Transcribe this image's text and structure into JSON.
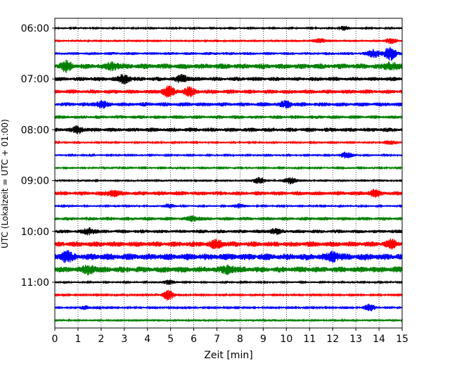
{
  "chart_data": {
    "type": "line",
    "title": "",
    "xlabel": "Zeit  [min]",
    "ylabel": "UTC (Lokalzeit = UTC + 01:00)",
    "xlim": [
      0,
      15
    ],
    "xticks": [
      "0",
      "1",
      "2",
      "3",
      "4",
      "5",
      "6",
      "7",
      "8",
      "9",
      "10",
      "11",
      "12",
      "13",
      "14",
      "15"
    ],
    "yticks": [
      "06:00",
      "07:00",
      "08:00",
      "09:00",
      "10:00",
      "11:00"
    ],
    "grid": "vertical dotted",
    "line_interval_min": 15,
    "start_time": "06:00",
    "line_colors": [
      "#000000",
      "#ff0000",
      "#0000ff",
      "#008000"
    ],
    "traces": [
      {
        "time": "06:00",
        "color": "#000000",
        "amp": 0.15,
        "bursts": [
          {
            "min": 12.5,
            "amp": 0.3
          }
        ]
      },
      {
        "time": "06:15",
        "color": "#ff0000",
        "amp": 0.2,
        "bursts": [
          {
            "min": 11.5,
            "amp": 0.3
          },
          {
            "min": 14.5,
            "amp": 0.3
          }
        ]
      },
      {
        "time": "06:30",
        "color": "#0000ff",
        "amp": 0.25,
        "bursts": [
          {
            "min": 13.8,
            "amp": 0.6
          },
          {
            "min": 14.5,
            "amp": 1.0
          }
        ]
      },
      {
        "time": "06:45",
        "color": "#008000",
        "amp": 0.45,
        "bursts": [
          {
            "min": 0.5,
            "amp": 0.6
          },
          {
            "min": 2.5,
            "amp": 0.5
          },
          {
            "min": 14.5,
            "amp": 0.5
          }
        ]
      },
      {
        "time": "07:00",
        "color": "#000000",
        "amp": 0.35,
        "bursts": [
          {
            "min": 3.0,
            "amp": 0.6
          },
          {
            "min": 5.5,
            "amp": 0.5
          }
        ]
      },
      {
        "time": "07:15",
        "color": "#ff0000",
        "amp": 0.35,
        "bursts": [
          {
            "min": 4.9,
            "amp": 0.7
          },
          {
            "min": 5.8,
            "amp": 0.6
          }
        ]
      },
      {
        "time": "07:30",
        "color": "#0000ff",
        "amp": 0.35,
        "bursts": [
          {
            "min": 2.0,
            "amp": 0.4
          },
          {
            "min": 10.0,
            "amp": 0.4
          }
        ]
      },
      {
        "time": "07:45",
        "color": "#008000",
        "amp": 0.3,
        "bursts": []
      },
      {
        "time": "08:00",
        "color": "#000000",
        "amp": 0.35,
        "bursts": [
          {
            "min": 1.0,
            "amp": 0.4
          }
        ]
      },
      {
        "time": "08:15",
        "color": "#ff0000",
        "amp": 0.15,
        "bursts": [
          {
            "min": 14.5,
            "amp": 0.3
          }
        ]
      },
      {
        "time": "08:30",
        "color": "#0000ff",
        "amp": 0.15,
        "bursts": [
          {
            "min": 12.6,
            "amp": 0.5
          }
        ]
      },
      {
        "time": "08:45",
        "color": "#008000",
        "amp": 0.15,
        "bursts": []
      },
      {
        "time": "09:00",
        "color": "#000000",
        "amp": 0.2,
        "bursts": [
          {
            "min": 8.8,
            "amp": 0.45
          },
          {
            "min": 10.2,
            "amp": 0.45
          }
        ]
      },
      {
        "time": "09:15",
        "color": "#ff0000",
        "amp": 0.35,
        "bursts": [
          {
            "min": 2.5,
            "amp": 0.4
          },
          {
            "min": 13.8,
            "amp": 0.4
          }
        ]
      },
      {
        "time": "09:30",
        "color": "#0000ff",
        "amp": 0.15,
        "bursts": [
          {
            "min": 4.9,
            "amp": 0.3
          },
          {
            "min": 8.0,
            "amp": 0.35
          }
        ]
      },
      {
        "time": "09:45",
        "color": "#008000",
        "amp": 0.3,
        "bursts": [
          {
            "min": 6.0,
            "amp": 0.35
          }
        ]
      },
      {
        "time": "10:00",
        "color": "#000000",
        "amp": 0.3,
        "bursts": [
          {
            "min": 1.5,
            "amp": 0.45
          },
          {
            "min": 9.5,
            "amp": 0.35
          }
        ]
      },
      {
        "time": "10:15",
        "color": "#ff0000",
        "amp": 0.45,
        "bursts": [
          {
            "min": 7.0,
            "amp": 0.5
          },
          {
            "min": 14.5,
            "amp": 0.5
          }
        ]
      },
      {
        "time": "10:30",
        "color": "#0000ff",
        "amp": 0.55,
        "bursts": [
          {
            "min": 0.5,
            "amp": 0.6
          },
          {
            "min": 12.0,
            "amp": 0.6
          }
        ]
      },
      {
        "time": "10:45",
        "color": "#008000",
        "amp": 0.5,
        "bursts": [
          {
            "min": 1.5,
            "amp": 0.55
          },
          {
            "min": 7.5,
            "amp": 0.5
          }
        ]
      },
      {
        "time": "11:00",
        "color": "#000000",
        "amp": 0.15,
        "bursts": [
          {
            "min": 4.9,
            "amp": 0.35
          }
        ]
      },
      {
        "time": "11:15",
        "color": "#ff0000",
        "amp": 0.12,
        "bursts": [
          {
            "min": 4.9,
            "amp": 0.8
          }
        ]
      },
      {
        "time": "11:30",
        "color": "#0000ff",
        "amp": 0.12,
        "bursts": [
          {
            "min": 1.3,
            "amp": 0.3
          },
          {
            "min": 13.6,
            "amp": 0.6
          }
        ]
      },
      {
        "time": "11:45",
        "color": "#008000",
        "amp": 0.2,
        "bursts": []
      }
    ]
  }
}
